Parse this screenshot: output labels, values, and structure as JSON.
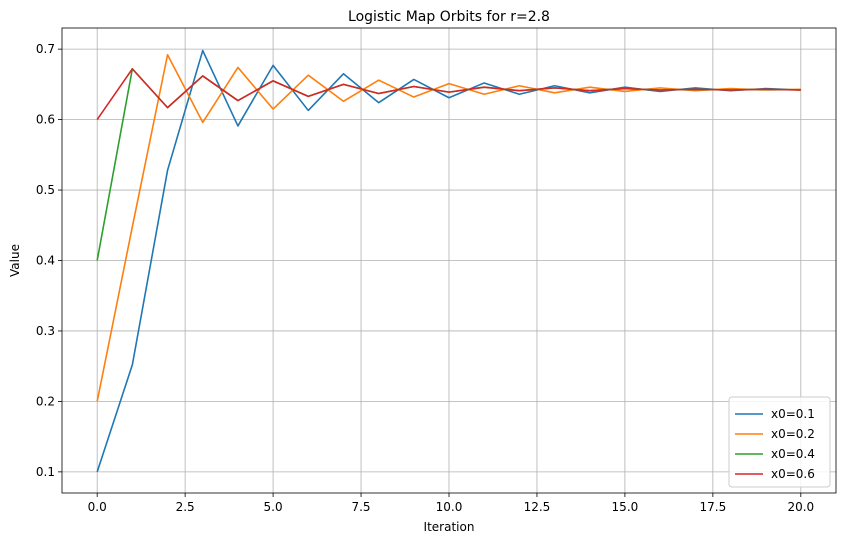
{
  "chart_data": {
    "type": "line",
    "title": "Logistic Map Orbits for r=2.8",
    "xlabel": "Iteration",
    "ylabel": "Value",
    "xlim": [
      -1,
      21
    ],
    "ylim": [
      0.07,
      0.73
    ],
    "x_ticks": [
      0.0,
      2.5,
      5.0,
      7.5,
      10.0,
      12.5,
      15.0,
      17.5,
      20.0
    ],
    "x_tick_labels": [
      "0.0",
      "2.5",
      "5.0",
      "7.5",
      "10.0",
      "12.5",
      "15.0",
      "17.5",
      "20.0"
    ],
    "y_ticks": [
      0.1,
      0.2,
      0.3,
      0.4,
      0.5,
      0.6,
      0.7
    ],
    "y_tick_labels": [
      "0.1",
      "0.2",
      "0.3",
      "0.4",
      "0.5",
      "0.6",
      "0.7"
    ],
    "grid": true,
    "legend_position": "lower-right",
    "x": [
      0,
      1,
      2,
      3,
      4,
      5,
      6,
      7,
      8,
      9,
      10,
      11,
      12,
      13,
      14,
      15,
      16,
      17,
      18,
      19,
      20
    ],
    "series": [
      {
        "name": "x0=0.1",
        "color": "#1f77b4",
        "values": [
          0.1,
          0.252,
          0.528,
          0.698,
          0.591,
          0.677,
          0.613,
          0.665,
          0.624,
          0.657,
          0.631,
          0.652,
          0.636,
          0.648,
          0.638,
          0.646,
          0.64,
          0.645,
          0.641,
          0.644,
          0.642
        ]
      },
      {
        "name": "x0=0.2",
        "color": "#ff7f0e",
        "values": [
          0.2,
          0.448,
          0.692,
          0.596,
          0.674,
          0.615,
          0.663,
          0.626,
          0.656,
          0.632,
          0.651,
          0.636,
          0.648,
          0.638,
          0.646,
          0.64,
          0.645,
          0.641,
          0.644,
          0.642,
          0.643
        ]
      },
      {
        "name": "x0=0.4",
        "color": "#2ca02c",
        "values": [
          0.4,
          0.672,
          0.617,
          0.662,
          0.627,
          0.655,
          0.633,
          0.65,
          0.637,
          0.647,
          0.639,
          0.646,
          0.641,
          0.645,
          0.641,
          0.644,
          0.642,
          0.643,
          0.642,
          0.643,
          0.642
        ]
      },
      {
        "name": "x0=0.6",
        "color": "#d62728",
        "values": [
          0.6,
          0.672,
          0.617,
          0.662,
          0.627,
          0.655,
          0.633,
          0.65,
          0.637,
          0.647,
          0.639,
          0.646,
          0.641,
          0.645,
          0.641,
          0.644,
          0.642,
          0.643,
          0.642,
          0.643,
          0.642
        ]
      }
    ]
  }
}
